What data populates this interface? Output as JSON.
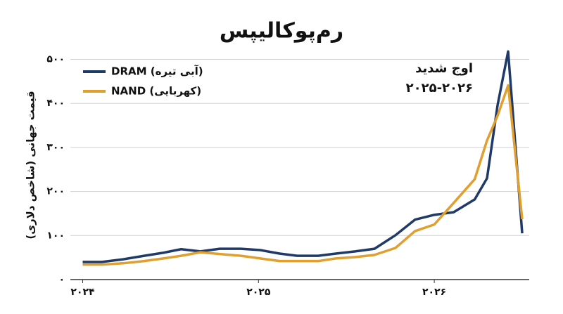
{
  "chart_data": {
    "type": "line",
    "title": "رم‌پوکالیپس",
    "y_label": "قیمت جهانی (شاخص دلاری)",
    "annotation": [
      "اوج شدید",
      "۲۰۲۵-۲۰۲۶"
    ],
    "x": [
      2024.0,
      2024.11,
      2024.23,
      2024.35,
      2024.46,
      2024.56,
      2024.67,
      2024.78,
      2024.9,
      2025.01,
      2025.12,
      2025.22,
      2025.34,
      2025.44,
      2025.55,
      2025.66,
      2025.78,
      2025.89,
      2026.0,
      2026.11,
      2026.23,
      2026.3,
      2026.36,
      2026.42,
      2026.5
    ],
    "series": [
      {
        "name": "DRAM (آبی تیره)",
        "color": "#1f3a68",
        "values": [
          40,
          40,
          46,
          54,
          61,
          69,
          64,
          70,
          70,
          67,
          59,
          54,
          54,
          59,
          64,
          70,
          101,
          136,
          147,
          153,
          182,
          230,
          396,
          518,
          105
        ]
      },
      {
        "name": "NAND (کهربایی)",
        "color": "#e0a030",
        "values": [
          34,
          34,
          37,
          42,
          48,
          54,
          62,
          58,
          54,
          48,
          42,
          42,
          42,
          48,
          51,
          56,
          72,
          110,
          125,
          174,
          228,
          316,
          372,
          441,
          137
        ]
      }
    ],
    "xlim": [
      2023.93,
      2026.54
    ],
    "xticks": [
      {
        "value": 2024,
        "label": "۲۰۲۴"
      },
      {
        "value": 2025,
        "label": "۲۰۲۵"
      },
      {
        "value": 2026,
        "label": "۲۰۲۶"
      }
    ],
    "ylim": [
      0,
      520
    ],
    "yticks": [
      {
        "value": 0,
        "label": "۰"
      },
      {
        "value": 100,
        "label": "۱۰۰"
      },
      {
        "value": 200,
        "label": "۲۰۰"
      },
      {
        "value": 300,
        "label": "۳۰۰"
      },
      {
        "value": 400,
        "label": "۴۰۰"
      },
      {
        "value": 500,
        "label": "۵۰۰"
      }
    ],
    "grid": true,
    "legend": "upper left"
  }
}
